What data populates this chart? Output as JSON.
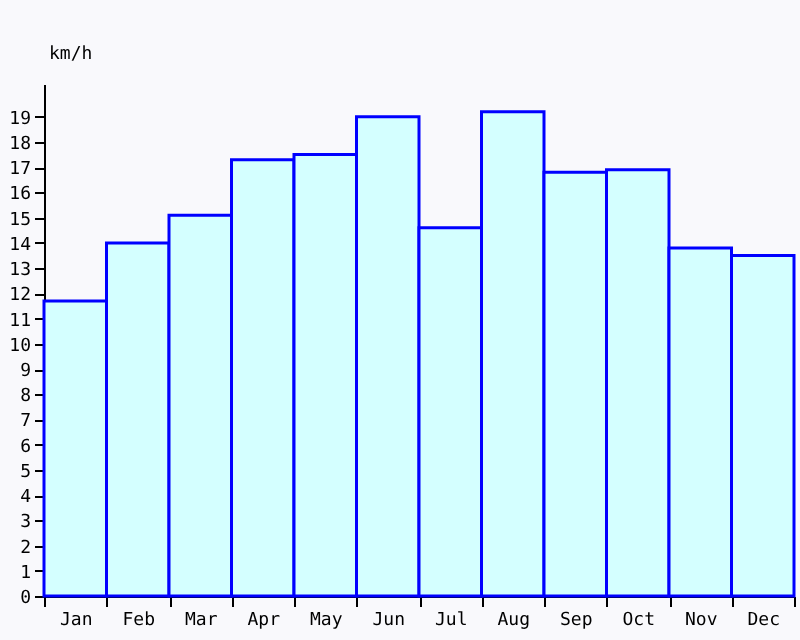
{
  "chart_data": {
    "type": "bar",
    "ylabel": "km/h",
    "categories": [
      "Jan",
      "Feb",
      "Mar",
      "Apr",
      "May",
      "Jun",
      "Jul",
      "Aug",
      "Sep",
      "Oct",
      "Nov",
      "Dec"
    ],
    "series": [
      {
        "color": "#0000ff",
        "values": [
          11.7,
          14.0,
          15.1,
          17.3,
          17.5,
          19.0,
          14.6,
          19.2,
          16.8,
          16.9,
          13.8,
          13.5
        ]
      }
    ],
    "ylim": [
      0,
      20.3
    ],
    "yticks": [
      0,
      1,
      2,
      3,
      4,
      5,
      6,
      7,
      8,
      9,
      10,
      11,
      12,
      13,
      14,
      15,
      16,
      17,
      18,
      19
    ],
    "grid": false
  }
}
